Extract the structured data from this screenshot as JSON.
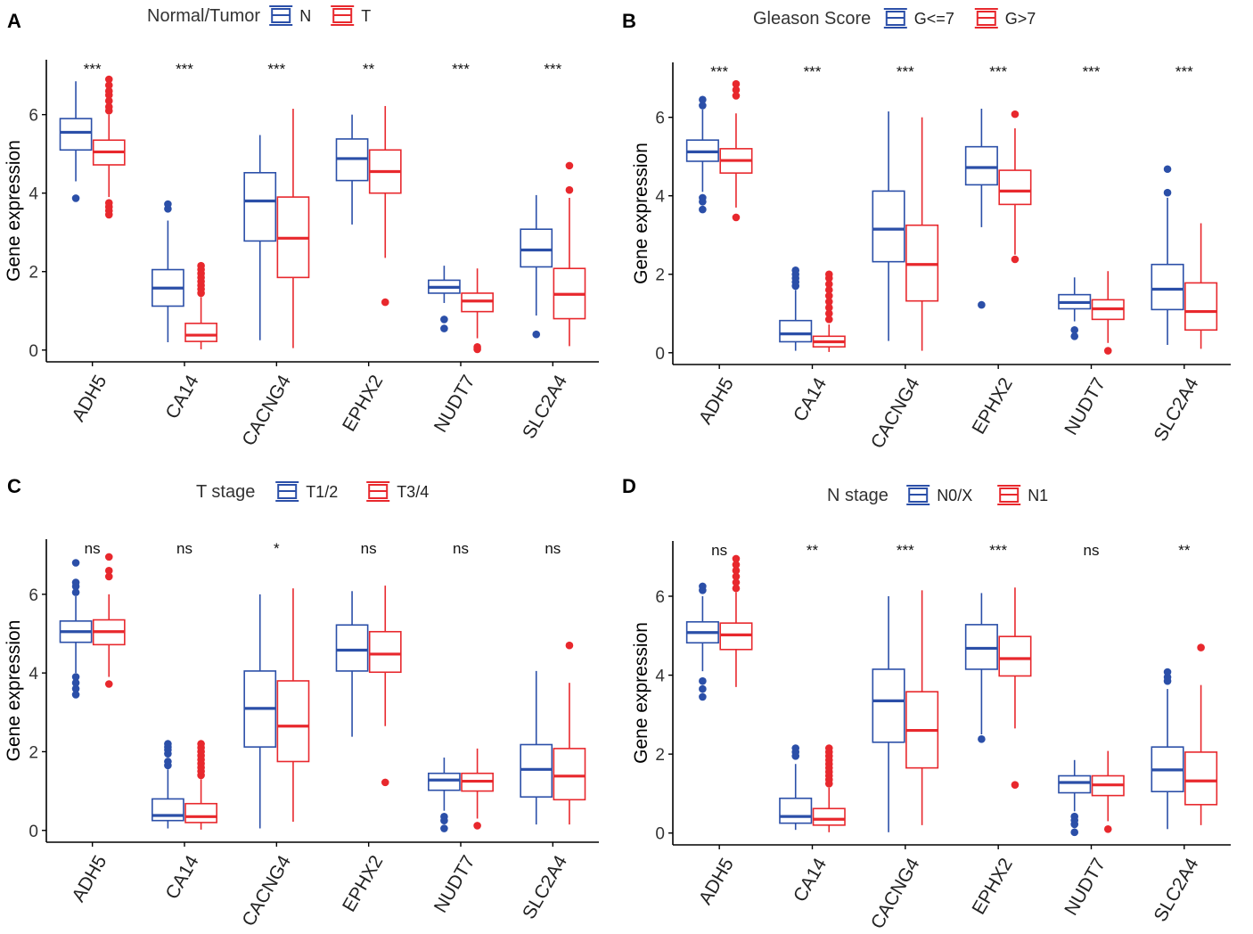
{
  "chart_data": [
    {
      "panel": "A",
      "type": "box",
      "legend_title": "Normal/Tumor",
      "groups": [
        "N",
        "T"
      ],
      "colors": [
        "#2B4FA8",
        "#E8282D"
      ],
      "ylabel": "Gene expression",
      "ylim": [
        -0.3,
        7.4
      ],
      "yticks": [
        0,
        2,
        4,
        6
      ],
      "categories": [
        "ADH5",
        "CA14",
        "CACNG4",
        "EPHX2",
        "NUDT7",
        "SLC2A4"
      ],
      "significance": [
        "***",
        "***",
        "***",
        "**",
        "***",
        "***"
      ],
      "boxes": [
        [
          {
            "min": 4.3,
            "q1": 5.1,
            "median": 5.55,
            "q3": 5.9,
            "max": 6.85,
            "outliers": [
              3.87
            ]
          },
          {
            "min": 3.9,
            "q1": 4.72,
            "median": 5.05,
            "q3": 5.35,
            "max": 6.0,
            "outliers": [
              3.45,
              3.55,
              3.65,
              3.75,
              6.1,
              6.2,
              6.35,
              6.5,
              6.6,
              6.75,
              6.9
            ]
          }
        ],
        [
          {
            "min": 0.2,
            "q1": 1.12,
            "median": 1.58,
            "q3": 2.05,
            "max": 3.3,
            "outliers": [
              3.6,
              3.72
            ]
          },
          {
            "min": 0.02,
            "q1": 0.22,
            "median": 0.38,
            "q3": 0.68,
            "max": 1.35,
            "outliers": [
              1.45,
              1.55,
              1.65,
              1.75,
              1.85,
              1.95,
              2.05,
              2.15
            ]
          }
        ],
        [
          {
            "min": 0.25,
            "q1": 2.78,
            "median": 3.8,
            "q3": 4.52,
            "max": 5.48,
            "outliers": []
          },
          {
            "min": 0.05,
            "q1": 1.85,
            "median": 2.85,
            "q3": 3.9,
            "max": 6.15,
            "outliers": []
          }
        ],
        [
          {
            "min": 3.2,
            "q1": 4.32,
            "median": 4.88,
            "q3": 5.38,
            "max": 6.0,
            "outliers": []
          },
          {
            "min": 2.35,
            "q1": 4.0,
            "median": 4.55,
            "q3": 5.1,
            "max": 6.22,
            "outliers": [
              1.22
            ]
          }
        ],
        [
          {
            "min": 1.2,
            "q1": 1.45,
            "median": 1.6,
            "q3": 1.78,
            "max": 2.15,
            "outliers": [
              0.55,
              0.78
            ]
          },
          {
            "min": 0.3,
            "q1": 0.98,
            "median": 1.25,
            "q3": 1.45,
            "max": 2.08,
            "outliers": [
              0.02,
              0.08
            ]
          }
        ],
        [
          {
            "min": 0.88,
            "q1": 2.12,
            "median": 2.55,
            "q3": 3.08,
            "max": 3.95,
            "outliers": [
              0.4
            ]
          },
          {
            "min": 0.1,
            "q1": 0.8,
            "median": 1.42,
            "q3": 2.08,
            "max": 3.88,
            "outliers": [
              4.08,
              4.7
            ]
          }
        ]
      ]
    },
    {
      "panel": "B",
      "type": "box",
      "legend_title": "Gleason Score",
      "groups": [
        "G<=7",
        "G>7"
      ],
      "colors": [
        "#2B4FA8",
        "#E8282D"
      ],
      "ylabel": "Gene expression",
      "ylim": [
        -0.3,
        7.4
      ],
      "yticks": [
        0,
        2,
        4,
        6
      ],
      "categories": [
        "ADH5",
        "CA14",
        "CACNG4",
        "EPHX2",
        "NUDT7",
        "SLC2A4"
      ],
      "significance": [
        "***",
        "***",
        "***",
        "***",
        "***",
        "***"
      ],
      "boxes": [
        [
          {
            "min": 4.1,
            "q1": 4.88,
            "median": 5.12,
            "q3": 5.42,
            "max": 6.2,
            "outliers": [
              3.65,
              3.85,
              3.95,
              6.3,
              6.45
            ]
          },
          {
            "min": 3.7,
            "q1": 4.58,
            "median": 4.9,
            "q3": 5.2,
            "max": 6.1,
            "outliers": [
              3.45,
              6.55,
              6.7,
              6.85
            ]
          }
        ],
        [
          {
            "min": 0.05,
            "q1": 0.28,
            "median": 0.48,
            "q3": 0.82,
            "max": 1.6,
            "outliers": [
              1.7,
              1.8,
              1.9,
              2.0,
              2.1
            ]
          },
          {
            "min": 0.02,
            "q1": 0.15,
            "median": 0.28,
            "q3": 0.42,
            "max": 0.72,
            "outliers": [
              0.85,
              1.0,
              1.15,
              1.3,
              1.45,
              1.6,
              1.75,
              1.9,
              2.0
            ]
          }
        ],
        [
          {
            "min": 0.3,
            "q1": 2.32,
            "median": 3.15,
            "q3": 4.12,
            "max": 6.15,
            "outliers": []
          },
          {
            "min": 0.05,
            "q1": 1.32,
            "median": 2.25,
            "q3": 3.25,
            "max": 6.0,
            "outliers": []
          }
        ],
        [
          {
            "min": 3.2,
            "q1": 4.28,
            "median": 4.72,
            "q3": 5.25,
            "max": 6.22,
            "outliers": [
              1.22
            ]
          },
          {
            "min": 2.5,
            "q1": 3.78,
            "median": 4.12,
            "q3": 4.65,
            "max": 5.72,
            "outliers": [
              2.38,
              6.08
            ]
          }
        ],
        [
          {
            "min": 0.8,
            "q1": 1.12,
            "median": 1.28,
            "q3": 1.48,
            "max": 1.92,
            "outliers": [
              0.42,
              0.58
            ]
          },
          {
            "min": 0.25,
            "q1": 0.85,
            "median": 1.12,
            "q3": 1.35,
            "max": 2.08,
            "outliers": [
              0.05
            ]
          }
        ],
        [
          {
            "min": 0.2,
            "q1": 1.1,
            "median": 1.62,
            "q3": 2.25,
            "max": 3.95,
            "outliers": [
              4.08,
              4.68
            ]
          },
          {
            "min": 0.1,
            "q1": 0.58,
            "median": 1.05,
            "q3": 1.78,
            "max": 3.3,
            "outliers": []
          }
        ]
      ]
    },
    {
      "panel": "C",
      "type": "box",
      "legend_title": "T stage",
      "groups": [
        "T1/2",
        "T3/4"
      ],
      "colors": [
        "#2B4FA8",
        "#E8282D"
      ],
      "ylabel": "Gene expression",
      "ylim": [
        -0.3,
        7.4
      ],
      "yticks": [
        0,
        2,
        4,
        6
      ],
      "categories": [
        "ADH5",
        "CA14",
        "CACNG4",
        "EPHX2",
        "NUDT7",
        "SLC2A4"
      ],
      "significance": [
        "ns",
        "ns",
        "*",
        "ns",
        "ns",
        "ns"
      ],
      "boxes": [
        [
          {
            "min": 4.0,
            "q1": 4.78,
            "median": 5.05,
            "q3": 5.32,
            "max": 5.95,
            "outliers": [
              3.45,
              3.6,
              3.75,
              3.9,
              6.05,
              6.2,
              6.3,
              6.8
            ]
          },
          {
            "min": 3.9,
            "q1": 4.72,
            "median": 5.05,
            "q3": 5.35,
            "max": 6.0,
            "outliers": [
              3.72,
              6.45,
              6.6,
              6.95
            ]
          }
        ],
        [
          {
            "min": 0.05,
            "q1": 0.25,
            "median": 0.38,
            "q3": 0.8,
            "max": 1.55,
            "outliers": [
              1.65,
              1.75,
              1.95,
              2.05,
              2.12,
              2.2
            ]
          },
          {
            "min": 0.02,
            "q1": 0.2,
            "median": 0.35,
            "q3": 0.68,
            "max": 1.3,
            "outliers": [
              1.4,
              1.5,
              1.6,
              1.7,
              1.8,
              1.9,
              2.0,
              2.1,
              2.2
            ]
          }
        ],
        [
          {
            "min": 0.05,
            "q1": 2.12,
            "median": 3.1,
            "q3": 4.05,
            "max": 6.0,
            "outliers": []
          },
          {
            "min": 0.22,
            "q1": 1.75,
            "median": 2.65,
            "q3": 3.8,
            "max": 6.15,
            "outliers": []
          }
        ],
        [
          {
            "min": 2.38,
            "q1": 4.05,
            "median": 4.58,
            "q3": 5.22,
            "max": 6.08,
            "outliers": []
          },
          {
            "min": 2.65,
            "q1": 4.02,
            "median": 4.48,
            "q3": 5.05,
            "max": 6.22,
            "outliers": [
              1.22
            ]
          }
        ],
        [
          {
            "min": 0.5,
            "q1": 1.02,
            "median": 1.28,
            "q3": 1.45,
            "max": 1.85,
            "outliers": [
              0.05,
              0.25,
              0.35
            ]
          },
          {
            "min": 0.3,
            "q1": 1.0,
            "median": 1.25,
            "q3": 1.45,
            "max": 2.08,
            "outliers": [
              0.12
            ]
          }
        ],
        [
          {
            "min": 0.15,
            "q1": 0.85,
            "median": 1.55,
            "q3": 2.18,
            "max": 4.05,
            "outliers": []
          },
          {
            "min": 0.15,
            "q1": 0.78,
            "median": 1.38,
            "q3": 2.08,
            "max": 3.75,
            "outliers": [
              4.7
            ]
          }
        ]
      ]
    },
    {
      "panel": "D",
      "type": "box",
      "legend_title": "N stage",
      "groups": [
        "N0/X",
        "N1"
      ],
      "colors": [
        "#2B4FA8",
        "#E8282D"
      ],
      "ylabel": "Gene expression",
      "ylim": [
        -0.3,
        7.4
      ],
      "yticks": [
        0,
        2,
        4,
        6
      ],
      "categories": [
        "ADH5",
        "CA14",
        "CACNG4",
        "EPHX2",
        "NUDT7",
        "SLC2A4"
      ],
      "significance": [
        "ns",
        "**",
        "***",
        "***",
        "ns",
        "**"
      ],
      "boxes": [
        [
          {
            "min": 4.1,
            "q1": 4.82,
            "median": 5.08,
            "q3": 5.35,
            "max": 6.0,
            "outliers": [
              3.45,
              3.65,
              3.85,
              6.15,
              6.25
            ]
          },
          {
            "min": 3.7,
            "q1": 4.65,
            "median": 5.02,
            "q3": 5.32,
            "max": 6.1,
            "outliers": [
              6.2,
              6.35,
              6.5,
              6.65,
              6.8,
              6.95
            ]
          }
        ],
        [
          {
            "min": 0.08,
            "q1": 0.25,
            "median": 0.42,
            "q3": 0.88,
            "max": 1.75,
            "outliers": [
              1.95,
              2.05,
              2.15
            ]
          },
          {
            "min": 0.02,
            "q1": 0.2,
            "median": 0.35,
            "q3": 0.62,
            "max": 1.15,
            "outliers": [
              1.25,
              1.35,
              1.45,
              1.55,
              1.65,
              1.75,
              1.85,
              1.95,
              2.05,
              2.15
            ]
          }
        ],
        [
          {
            "min": 0.02,
            "q1": 2.3,
            "median": 3.35,
            "q3": 4.15,
            "max": 6.0,
            "outliers": []
          },
          {
            "min": 0.2,
            "q1": 1.65,
            "median": 2.6,
            "q3": 3.58,
            "max": 6.15,
            "outliers": []
          }
        ],
        [
          {
            "min": 2.5,
            "q1": 4.15,
            "median": 4.68,
            "q3": 5.28,
            "max": 6.08,
            "outliers": [
              2.38
            ]
          },
          {
            "min": 2.65,
            "q1": 3.98,
            "median": 4.42,
            "q3": 4.98,
            "max": 6.22,
            "outliers": [
              1.22
            ]
          }
        ],
        [
          {
            "min": 0.55,
            "q1": 1.02,
            "median": 1.28,
            "q3": 1.45,
            "max": 1.85,
            "outliers": [
              0.02,
              0.22,
              0.32,
              0.42
            ]
          },
          {
            "min": 0.3,
            "q1": 0.95,
            "median": 1.22,
            "q3": 1.45,
            "max": 2.08,
            "outliers": [
              0.1
            ]
          }
        ],
        [
          {
            "min": 0.1,
            "q1": 1.05,
            "median": 1.6,
            "q3": 2.18,
            "max": 3.65,
            "outliers": [
              3.85,
              3.95,
              4.08
            ]
          },
          {
            "min": 0.2,
            "q1": 0.72,
            "median": 1.32,
            "q3": 2.05,
            "max": 3.75,
            "outliers": [
              4.7
            ]
          }
        ]
      ]
    }
  ]
}
